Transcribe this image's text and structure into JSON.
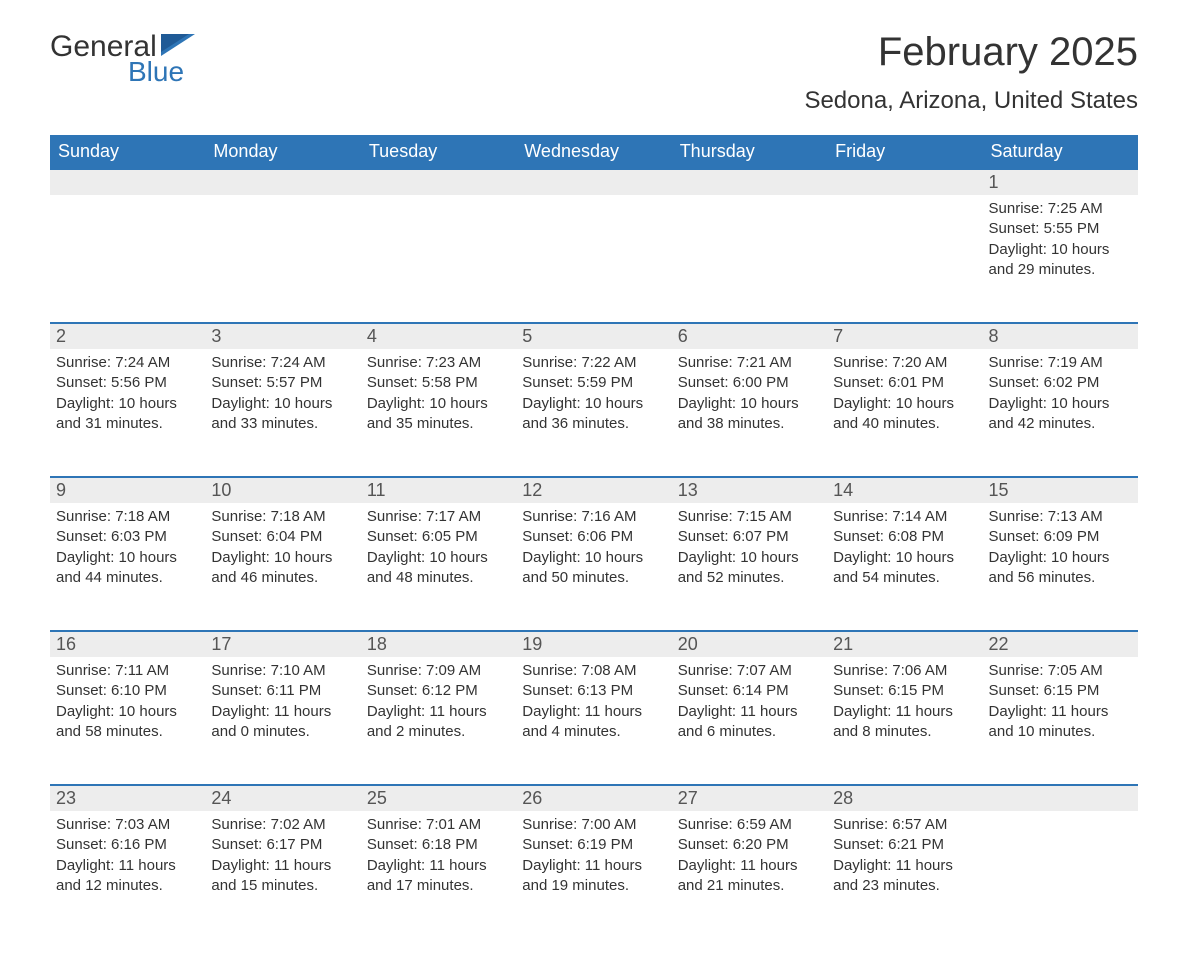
{
  "logo": {
    "general": "General",
    "blue": "Blue"
  },
  "header": {
    "month_title": "February 2025",
    "location": "Sedona, Arizona, United States"
  },
  "colors": {
    "header_bg": "#2e75b6",
    "header_text": "#ffffff",
    "daynum_bg": "#ededed",
    "border_top": "#2e75b6",
    "text": "#333333"
  },
  "weekdays": [
    "Sunday",
    "Monday",
    "Tuesday",
    "Wednesday",
    "Thursday",
    "Friday",
    "Saturday"
  ],
  "weeks": [
    [
      null,
      null,
      null,
      null,
      null,
      null,
      {
        "d": "1",
        "sr": "Sunrise: 7:25 AM",
        "ss": "Sunset: 5:55 PM",
        "dl": "Daylight: 10 hours and 29 minutes."
      }
    ],
    [
      {
        "d": "2",
        "sr": "Sunrise: 7:24 AM",
        "ss": "Sunset: 5:56 PM",
        "dl": "Daylight: 10 hours and 31 minutes."
      },
      {
        "d": "3",
        "sr": "Sunrise: 7:24 AM",
        "ss": "Sunset: 5:57 PM",
        "dl": "Daylight: 10 hours and 33 minutes."
      },
      {
        "d": "4",
        "sr": "Sunrise: 7:23 AM",
        "ss": "Sunset: 5:58 PM",
        "dl": "Daylight: 10 hours and 35 minutes."
      },
      {
        "d": "5",
        "sr": "Sunrise: 7:22 AM",
        "ss": "Sunset: 5:59 PM",
        "dl": "Daylight: 10 hours and 36 minutes."
      },
      {
        "d": "6",
        "sr": "Sunrise: 7:21 AM",
        "ss": "Sunset: 6:00 PM",
        "dl": "Daylight: 10 hours and 38 minutes."
      },
      {
        "d": "7",
        "sr": "Sunrise: 7:20 AM",
        "ss": "Sunset: 6:01 PM",
        "dl": "Daylight: 10 hours and 40 minutes."
      },
      {
        "d": "8",
        "sr": "Sunrise: 7:19 AM",
        "ss": "Sunset: 6:02 PM",
        "dl": "Daylight: 10 hours and 42 minutes."
      }
    ],
    [
      {
        "d": "9",
        "sr": "Sunrise: 7:18 AM",
        "ss": "Sunset: 6:03 PM",
        "dl": "Daylight: 10 hours and 44 minutes."
      },
      {
        "d": "10",
        "sr": "Sunrise: 7:18 AM",
        "ss": "Sunset: 6:04 PM",
        "dl": "Daylight: 10 hours and 46 minutes."
      },
      {
        "d": "11",
        "sr": "Sunrise: 7:17 AM",
        "ss": "Sunset: 6:05 PM",
        "dl": "Daylight: 10 hours and 48 minutes."
      },
      {
        "d": "12",
        "sr": "Sunrise: 7:16 AM",
        "ss": "Sunset: 6:06 PM",
        "dl": "Daylight: 10 hours and 50 minutes."
      },
      {
        "d": "13",
        "sr": "Sunrise: 7:15 AM",
        "ss": "Sunset: 6:07 PM",
        "dl": "Daylight: 10 hours and 52 minutes."
      },
      {
        "d": "14",
        "sr": "Sunrise: 7:14 AM",
        "ss": "Sunset: 6:08 PM",
        "dl": "Daylight: 10 hours and 54 minutes."
      },
      {
        "d": "15",
        "sr": "Sunrise: 7:13 AM",
        "ss": "Sunset: 6:09 PM",
        "dl": "Daylight: 10 hours and 56 minutes."
      }
    ],
    [
      {
        "d": "16",
        "sr": "Sunrise: 7:11 AM",
        "ss": "Sunset: 6:10 PM",
        "dl": "Daylight: 10 hours and 58 minutes."
      },
      {
        "d": "17",
        "sr": "Sunrise: 7:10 AM",
        "ss": "Sunset: 6:11 PM",
        "dl": "Daylight: 11 hours and 0 minutes."
      },
      {
        "d": "18",
        "sr": "Sunrise: 7:09 AM",
        "ss": "Sunset: 6:12 PM",
        "dl": "Daylight: 11 hours and 2 minutes."
      },
      {
        "d": "19",
        "sr": "Sunrise: 7:08 AM",
        "ss": "Sunset: 6:13 PM",
        "dl": "Daylight: 11 hours and 4 minutes."
      },
      {
        "d": "20",
        "sr": "Sunrise: 7:07 AM",
        "ss": "Sunset: 6:14 PM",
        "dl": "Daylight: 11 hours and 6 minutes."
      },
      {
        "d": "21",
        "sr": "Sunrise: 7:06 AM",
        "ss": "Sunset: 6:15 PM",
        "dl": "Daylight: 11 hours and 8 minutes."
      },
      {
        "d": "22",
        "sr": "Sunrise: 7:05 AM",
        "ss": "Sunset: 6:15 PM",
        "dl": "Daylight: 11 hours and 10 minutes."
      }
    ],
    [
      {
        "d": "23",
        "sr": "Sunrise: 7:03 AM",
        "ss": "Sunset: 6:16 PM",
        "dl": "Daylight: 11 hours and 12 minutes."
      },
      {
        "d": "24",
        "sr": "Sunrise: 7:02 AM",
        "ss": "Sunset: 6:17 PM",
        "dl": "Daylight: 11 hours and 15 minutes."
      },
      {
        "d": "25",
        "sr": "Sunrise: 7:01 AM",
        "ss": "Sunset: 6:18 PM",
        "dl": "Daylight: 11 hours and 17 minutes."
      },
      {
        "d": "26",
        "sr": "Sunrise: 7:00 AM",
        "ss": "Sunset: 6:19 PM",
        "dl": "Daylight: 11 hours and 19 minutes."
      },
      {
        "d": "27",
        "sr": "Sunrise: 6:59 AM",
        "ss": "Sunset: 6:20 PM",
        "dl": "Daylight: 11 hours and 21 minutes."
      },
      {
        "d": "28",
        "sr": "Sunrise: 6:57 AM",
        "ss": "Sunset: 6:21 PM",
        "dl": "Daylight: 11 hours and 23 minutes."
      },
      null
    ]
  ]
}
